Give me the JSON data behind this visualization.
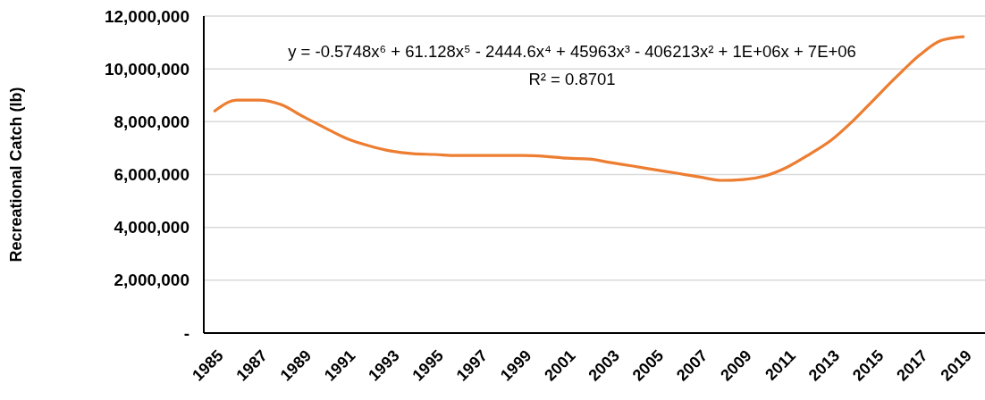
{
  "chart_data": {
    "type": "line",
    "ylabel": "Recreational Catch (lb)",
    "categories": [
      "1985",
      null,
      "1987",
      null,
      "1989",
      null,
      "1991",
      null,
      "1993",
      null,
      "1995",
      null,
      "1997",
      null,
      "1999",
      null,
      "2001",
      null,
      "2003",
      null,
      "2005",
      null,
      "2007",
      null,
      "2009",
      null,
      "2011",
      null,
      "2013",
      null,
      "2015",
      null,
      "2017",
      null,
      "2019"
    ],
    "series": [
      {
        "color": "#ed7d31",
        "values": [
          8410000,
          8820000,
          8820000,
          8650000,
          8200000,
          7770000,
          7360000,
          7090000,
          6890000,
          6790000,
          6760000,
          6720000,
          6720000,
          6720000,
          6720000,
          6690000,
          6620000,
          6590000,
          6450000,
          6320000,
          6180000,
          6050000,
          5910000,
          5780000,
          5810000,
          5950000,
          6280000,
          6760000,
          7300000,
          8040000,
          8890000,
          9730000,
          10510000,
          11080000,
          11220000
        ]
      }
    ],
    "ylim": [
      0,
      12000000
    ],
    "yticks": [
      {
        "value": 0,
        "label": "-"
      },
      {
        "value": 2000000,
        "label": "2,000,000"
      },
      {
        "value": 4000000,
        "label": "4,000,000"
      },
      {
        "value": 6000000,
        "label": "6,000,000"
      },
      {
        "value": 8000000,
        "label": "8,000,000"
      },
      {
        "value": 10000000,
        "label": "10,000,000"
      },
      {
        "value": 12000000,
        "label": "12,000,000"
      }
    ],
    "grid": "y",
    "marker": "none",
    "line_style": "solid",
    "annotations": [
      "y = -0.5748x⁶ + 61.128x⁵ - 2444.6x⁴ + 45963x³ - 406213x² + 1E+06x + 7E+06",
      "R² = 0.8701"
    ]
  }
}
